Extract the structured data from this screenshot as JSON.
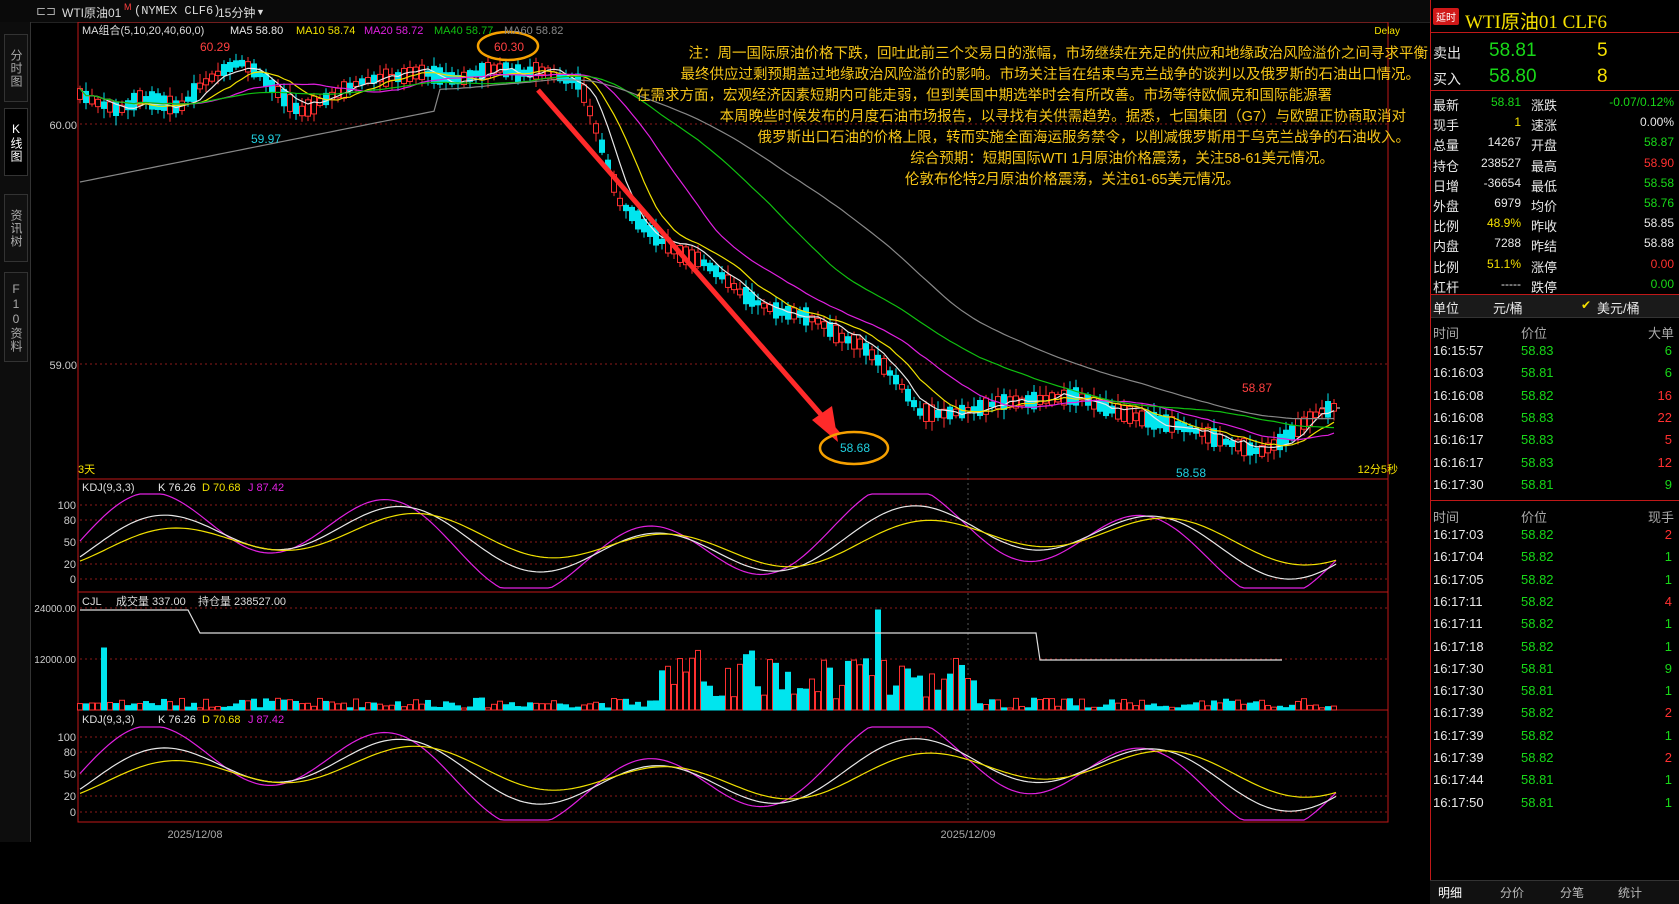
{
  "topbar": {
    "menu_glyph": "⊏⊐",
    "instrument": "WTI原油01",
    "superscript": "M",
    "exchange": "(NYMEX CLF6)",
    "period": "15分钟",
    "dropdown_glyph": "▼"
  },
  "left_tabs": [
    "分时图",
    "K线图",
    "资讯树",
    "F10资料"
  ],
  "main": {
    "ma_legend": {
      "title": "MA组合(5,10,20,40,60,0)",
      "ma5": "MA5 58.80",
      "ma10": "MA10 58.74",
      "ma20": "MA20 58.72",
      "ma40": "MA40 58.77",
      "ma60": "MA60 58.82"
    },
    "delay_label": "Delay",
    "y_labels": [
      "60.00",
      "59.00"
    ],
    "price_marks": {
      "high1": "60.29",
      "high2": "60.30",
      "low1": "59.97",
      "low2": "58.68",
      "low3": "58.58",
      "high3": "58.87"
    },
    "days_label": "3天",
    "countdown": "12分5秒",
    "annotation": [
      "注：周一国际原油价格下跌，回吐此前三个交易日的涨幅，市场继续在充足的供应和地缘政治风险溢价之间寻求平衡",
      "最终供应过剩预期盖过地缘政治风险溢价的影响。市场关注旨在结束乌克兰战争的谈判以及俄罗斯的石油出口情况。",
      "在需求方面，宏观经济因素短期内可能走弱，但到美国中期选举时会有所改善。市场等待欧佩克和国际能源署",
      "本周晚些时候发布的月度石油市场报告，以寻找有关供需趋势。据悉，七国集团（G7）与欧盟正协商取消对",
      "俄罗斯出口石油的价格上限，转而实施全面海运服务禁令，以削减俄罗斯用于乌克兰战争的石油收入。",
      "综合预期：短期国际WTI 1月原油价格震荡，关注58-61美元情况。",
      "伦敦布伦特2月原油价格震荡，关注61-65美元情况。"
    ]
  },
  "kdj1": {
    "legend": "KDJ(9,3,3)",
    "k": "K 76.26",
    "d": "D 70.68",
    "j": "J 87.42",
    "y_labels": [
      "100",
      "80",
      "50",
      "20",
      "0"
    ]
  },
  "cjl": {
    "legend": "CJL",
    "vol": "成交量 337.00",
    "oi": "持仓量 238527.00",
    "y_labels": [
      "24000.00",
      "12000.00"
    ]
  },
  "kdj2": {
    "legend": "KDJ(9,3,3)",
    "k": "K 76.26",
    "d": "D 70.68",
    "j": "J 87.42",
    "y_labels": [
      "100",
      "80",
      "50",
      "20",
      "0"
    ]
  },
  "x_labels": [
    "2025/12/08",
    "2025/12/09"
  ],
  "right_panel": {
    "badge": "延时",
    "title": "WTI原油01  CLF6",
    "sell": {
      "label": "卖出",
      "price": "58.81",
      "qty": "5"
    },
    "buy": {
      "label": "买入",
      "price": "58.80",
      "qty": "8"
    },
    "stats": [
      [
        "最新",
        "58.81",
        "涨跌",
        "-0.07/0.12%"
      ],
      [
        "现手",
        "1",
        "速涨",
        "0.00%"
      ],
      [
        "总量",
        "14267",
        "开盘",
        "58.87"
      ],
      [
        "持仓",
        "238527",
        "最高",
        "58.90"
      ],
      [
        "日增",
        "-36654",
        "最低",
        "58.58"
      ],
      [
        "外盘",
        "6979",
        "均价",
        "58.76"
      ],
      [
        "比例",
        "48.9%",
        "昨收",
        "58.85"
      ],
      [
        "内盘",
        "7288",
        "昨结",
        "58.88"
      ],
      [
        "比例",
        "51.1%",
        "涨停",
        "0.00"
      ],
      [
        "杠杆",
        "-----",
        "跌停",
        "0.00"
      ]
    ],
    "unit": {
      "label": "单位",
      "cny": "元/桶",
      "check": "✔",
      "usd": "美元/桶"
    },
    "big_header": [
      "时间",
      "价位",
      "大单"
    ],
    "big_trades": [
      [
        "16:15:57",
        "58.83",
        "6"
      ],
      [
        "16:16:03",
        "58.81",
        "6"
      ],
      [
        "16:16:08",
        "58.82",
        "16"
      ],
      [
        "16:16:08",
        "58.83",
        "22"
      ],
      [
        "16:16:17",
        "58.83",
        "5"
      ],
      [
        "16:16:17",
        "58.83",
        "12"
      ],
      [
        "16:17:30",
        "58.81",
        "9"
      ]
    ],
    "tick_header": [
      "时间",
      "价位",
      "现手"
    ],
    "ticks": [
      [
        "16:17:03",
        "58.82",
        "2"
      ],
      [
        "16:17:04",
        "58.82",
        "1"
      ],
      [
        "16:17:05",
        "58.82",
        "1"
      ],
      [
        "16:17:11",
        "58.82",
        "4"
      ],
      [
        "16:17:11",
        "58.82",
        "1"
      ],
      [
        "16:17:18",
        "58.82",
        "1"
      ],
      [
        "16:17:30",
        "58.81",
        "9"
      ],
      [
        "16:17:30",
        "58.81",
        "1"
      ],
      [
        "16:17:39",
        "58.82",
        "2"
      ],
      [
        "16:17:39",
        "58.82",
        "1"
      ],
      [
        "16:17:39",
        "58.82",
        "2"
      ],
      [
        "16:17:44",
        "58.81",
        "1"
      ],
      [
        "16:17:50",
        "58.81",
        "1"
      ]
    ],
    "bottom_tabs": [
      "明细",
      "分价",
      "分笔",
      "统计"
    ]
  },
  "colors": {
    "up": "#ff3030",
    "down": "#00e5ee",
    "ma5": "#e8e8e8",
    "ma10": "#f0e000",
    "ma20": "#e020e0",
    "ma40": "#10c010",
    "ma60": "#888888",
    "arrow": "#ff2a2a",
    "circle": "#f5a000",
    "annotation": "#f5c518"
  }
}
